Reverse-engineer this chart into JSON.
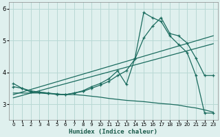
{
  "xlabel": "Humidex (Indice chaleur)",
  "bg_color": "#dff0ee",
  "grid_color": "#b8d8d4",
  "line_color": "#1a6b5e",
  "xlim": [
    -0.5,
    23.5
  ],
  "ylim": [
    2.5,
    6.2
  ],
  "yticks": [
    3,
    4,
    5,
    6
  ],
  "xticks": [
    0,
    1,
    2,
    3,
    4,
    5,
    6,
    7,
    8,
    9,
    10,
    11,
    12,
    13,
    14,
    15,
    16,
    17,
    18,
    19,
    20,
    21,
    22,
    23
  ],
  "series1_x": [
    0,
    1,
    2,
    3,
    4,
    5,
    6,
    7,
    8,
    9,
    10,
    11,
    12,
    13,
    14,
    15,
    16,
    17,
    18,
    19,
    20,
    21,
    22,
    23
  ],
  "series1_y": [
    3.65,
    3.5,
    3.38,
    3.37,
    3.35,
    3.3,
    3.3,
    3.35,
    3.42,
    3.55,
    3.65,
    3.8,
    4.05,
    3.62,
    4.45,
    5.88,
    5.72,
    5.6,
    5.15,
    4.88,
    4.62,
    3.9,
    2.72,
    2.72
  ],
  "series2_x": [
    0,
    1,
    2,
    3,
    4,
    5,
    6,
    7,
    8,
    9,
    10,
    11,
    12,
    13,
    14,
    15,
    16,
    17,
    18,
    19,
    20,
    21,
    22,
    23
  ],
  "series2_y": [
    3.55,
    3.5,
    3.42,
    3.38,
    3.35,
    3.32,
    3.3,
    3.35,
    3.4,
    3.5,
    3.6,
    3.72,
    3.9,
    4.05,
    4.42,
    5.08,
    5.45,
    5.72,
    5.22,
    5.15,
    4.92,
    4.45,
    3.9,
    3.9
  ],
  "series3_x": [
    0,
    23
  ],
  "series3_y": [
    3.3,
    5.15
  ],
  "series4_x": [
    0,
    23
  ],
  "series4_y": [
    3.2,
    4.9
  ],
  "series5_x": [
    0,
    1,
    2,
    3,
    4,
    5,
    6,
    7,
    8,
    9,
    10,
    11,
    12,
    13,
    14,
    15,
    16,
    17,
    18,
    19,
    20,
    21,
    22,
    23
  ],
  "series5_y": [
    3.35,
    3.35,
    3.35,
    3.35,
    3.33,
    3.32,
    3.3,
    3.3,
    3.28,
    3.25,
    3.22,
    3.18,
    3.15,
    3.12,
    3.1,
    3.08,
    3.05,
    3.02,
    3.0,
    2.97,
    2.92,
    2.88,
    2.82,
    2.75
  ]
}
